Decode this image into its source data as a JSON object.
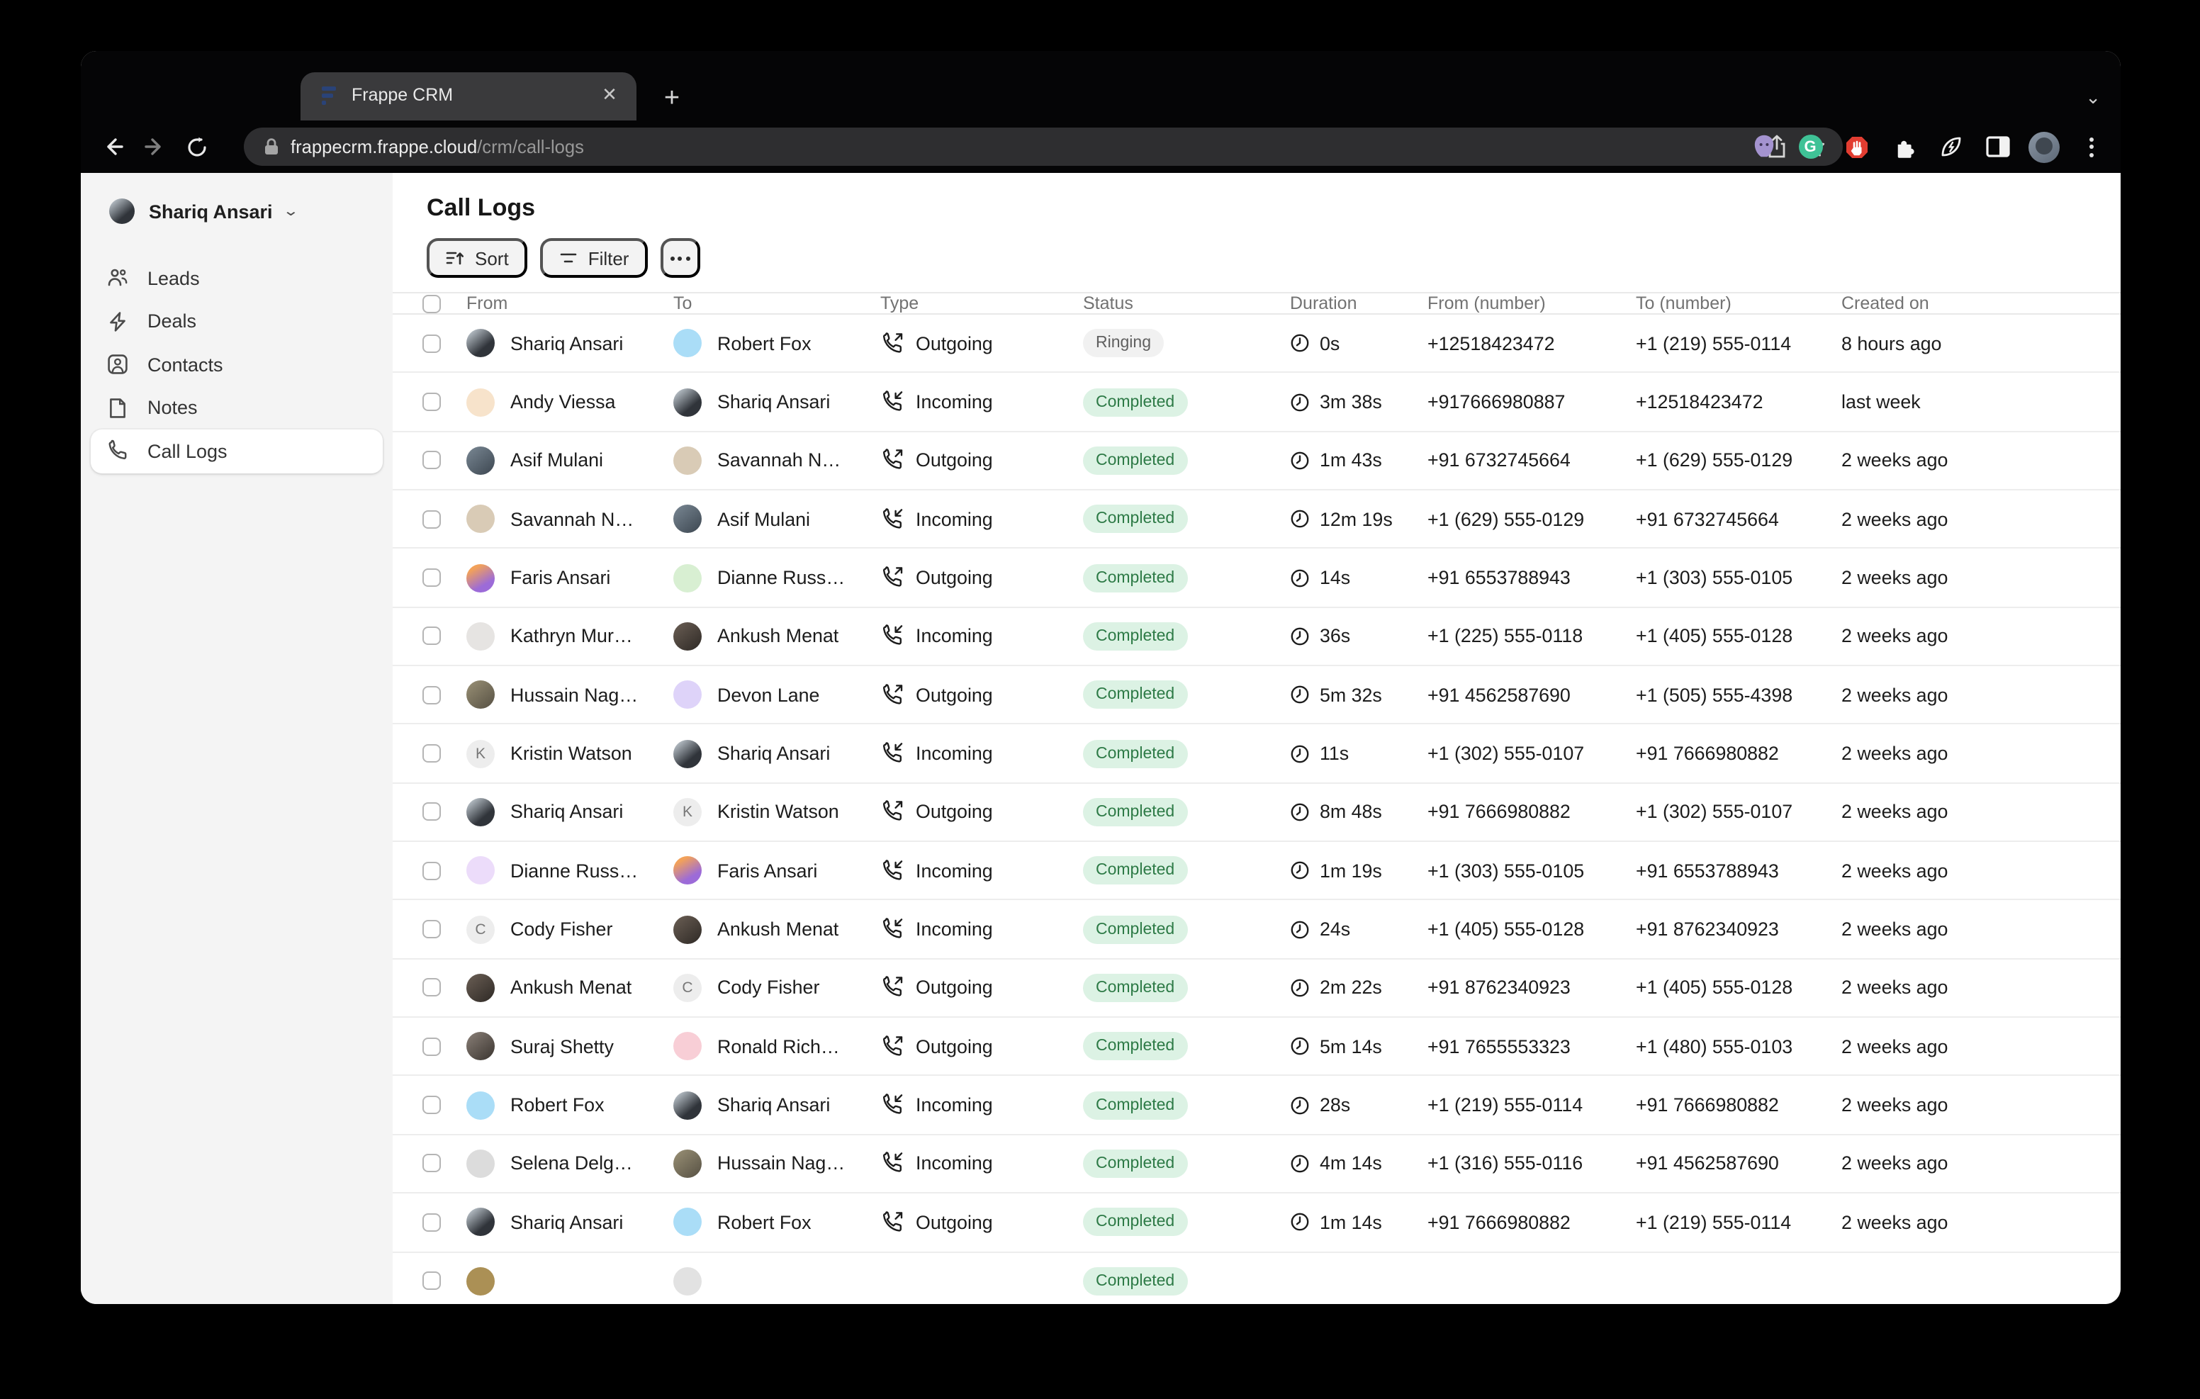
{
  "browser": {
    "tab": {
      "title": "Frappe CRM",
      "favicon": "frappe-logo"
    },
    "new_tab_label": "+",
    "url": {
      "domain": "frappecrm.frappe.cloud",
      "path": "/crm/call-logs"
    },
    "extensions": [
      "github",
      "grammarly",
      "adblock",
      "extensions-puzzle",
      "energy-saver",
      "side-panel"
    ],
    "grammarly_letter": "G"
  },
  "sidebar": {
    "user": {
      "name": "Shariq Ansari"
    },
    "items": [
      {
        "label": "Leads",
        "icon": "leads-icon",
        "active": false
      },
      {
        "label": "Deals",
        "icon": "deals-icon",
        "active": false
      },
      {
        "label": "Contacts",
        "icon": "contacts-icon",
        "active": false
      },
      {
        "label": "Notes",
        "icon": "notes-icon",
        "active": false
      },
      {
        "label": "Call Logs",
        "icon": "call-logs-icon",
        "active": true
      }
    ]
  },
  "main": {
    "title": "Call Logs",
    "toolbar": {
      "sort_label": "Sort",
      "filter_label": "Filter"
    },
    "table": {
      "columns": [
        "From",
        "To",
        "Type",
        "Status",
        "Duration",
        "From (number)",
        "To (number)",
        "Created on"
      ],
      "rows": [
        {
          "from": {
            "name": "Shariq Ansari",
            "avatar_color": "linear-gradient(140deg,#aeb6bd 15%,#30343a 65%)"
          },
          "to": {
            "name": "Robert Fox",
            "avatar_color": "#aaddf7"
          },
          "type": "Outgoing",
          "status": "Ringing",
          "duration": "0s",
          "from_number": "+12518423472",
          "to_number": "+1 (219) 555-0114",
          "created": "8 hours ago"
        },
        {
          "from": {
            "name": "Andy Viessa",
            "avatar_color": "#f7e3cb"
          },
          "to": {
            "name": "Shariq Ansari",
            "avatar_color": "linear-gradient(140deg,#aeb6bd 15%,#30343a 65%)"
          },
          "type": "Incoming",
          "status": "Completed",
          "duration": "3m 38s",
          "from_number": "+917666980887",
          "to_number": "+12518423472",
          "created": "last week"
        },
        {
          "from": {
            "name": "Asif Mulani",
            "avatar_color": "linear-gradient(140deg,#7a8894,#3c4650)"
          },
          "to": {
            "name": "Savannah N…",
            "avatar_color": "#d9cbb6"
          },
          "type": "Outgoing",
          "status": "Completed",
          "duration": "1m 43s",
          "from_number": "+91 6732745664",
          "to_number": "+1 (629) 555-0129",
          "created": "2 weeks ago"
        },
        {
          "from": {
            "name": "Savannah N…",
            "avatar_color": "#d9cbb6"
          },
          "to": {
            "name": "Asif Mulani",
            "avatar_color": "linear-gradient(140deg,#7a8894,#3c4650)"
          },
          "type": "Incoming",
          "status": "Completed",
          "duration": "12m 19s",
          "from_number": "+1 (629) 555-0129",
          "to_number": "+91 6732745664",
          "created": "2 weeks ago"
        },
        {
          "from": {
            "name": "Faris Ansari",
            "avatar_color": "linear-gradient(150deg,#f2a15a 20%,#9c6bd8 70%)"
          },
          "to": {
            "name": "Dianne Russ…",
            "avatar_color": "#d8efd2"
          },
          "type": "Outgoing",
          "status": "Completed",
          "duration": "14s",
          "from_number": "+91 6553788943",
          "to_number": "+1 (303) 555-0105",
          "created": "2 weeks ago"
        },
        {
          "from": {
            "name": "Kathryn Mur…",
            "avatar_color": "#e6e4e2"
          },
          "to": {
            "name": "Ankush Menat",
            "avatar_color": "linear-gradient(140deg,#6b5f55,#2e2925)"
          },
          "type": "Incoming",
          "status": "Completed",
          "duration": "36s",
          "from_number": "+1 (225) 555-0118",
          "to_number": "+1 (405) 555-0128",
          "created": "2 weeks ago"
        },
        {
          "from": {
            "name": "Hussain Nag…",
            "avatar_color": "linear-gradient(140deg,#9a9176,#565043)"
          },
          "to": {
            "name": "Devon Lane",
            "avatar_color": "#ded3f9"
          },
          "type": "Outgoing",
          "status": "Completed",
          "duration": "5m 32s",
          "from_number": "+91 4562587690",
          "to_number": "+1 (505) 555-4398",
          "created": "2 weeks ago"
        },
        {
          "from": {
            "name": "Kristin Watson",
            "avatar_color": "#ededed",
            "initial": "K"
          },
          "to": {
            "name": "Shariq Ansari",
            "avatar_color": "linear-gradient(140deg,#aeb6bd 15%,#30343a 65%)"
          },
          "type": "Incoming",
          "status": "Completed",
          "duration": "11s",
          "from_number": "+1 (302) 555-0107",
          "to_number": "+91 7666980882",
          "created": "2 weeks ago"
        },
        {
          "from": {
            "name": "Shariq Ansari",
            "avatar_color": "linear-gradient(140deg,#aeb6bd 15%,#30343a 65%)"
          },
          "to": {
            "name": "Kristin Watson",
            "avatar_color": "#ededed",
            "initial": "K"
          },
          "type": "Outgoing",
          "status": "Completed",
          "duration": "8m 48s",
          "from_number": "+91 7666980882",
          "to_number": "+1 (302) 555-0107",
          "created": "2 weeks ago"
        },
        {
          "from": {
            "name": "Dianne Russ…",
            "avatar_color": "#ecdcfa"
          },
          "to": {
            "name": "Faris Ansari",
            "avatar_color": "linear-gradient(150deg,#f2a15a 20%,#9c6bd8 70%)"
          },
          "type": "Incoming",
          "status": "Completed",
          "duration": "1m 19s",
          "from_number": "+1 (303) 555-0105",
          "to_number": "+91 6553788943",
          "created": "2 weeks ago"
        },
        {
          "from": {
            "name": "Cody Fisher",
            "avatar_color": "#ededed",
            "initial": "C"
          },
          "to": {
            "name": "Ankush Menat",
            "avatar_color": "linear-gradient(140deg,#6b5f55,#2e2925)"
          },
          "type": "Incoming",
          "status": "Completed",
          "duration": "24s",
          "from_number": "+1 (405) 555-0128",
          "to_number": "+91 8762340923",
          "created": "2 weeks ago"
        },
        {
          "from": {
            "name": "Ankush Menat",
            "avatar_color": "linear-gradient(140deg,#6b5f55,#2e2925)"
          },
          "to": {
            "name": "Cody Fisher",
            "avatar_color": "#ededed",
            "initial": "C"
          },
          "type": "Outgoing",
          "status": "Completed",
          "duration": "2m 22s",
          "from_number": "+91 8762340923",
          "to_number": "+1 (405) 555-0128",
          "created": "2 weeks ago"
        },
        {
          "from": {
            "name": "Suraj Shetty",
            "avatar_color": "linear-gradient(140deg,#8a8078,#3a342f)"
          },
          "to": {
            "name": "Ronald Rich…",
            "avatar_color": "#f8ced6"
          },
          "type": "Outgoing",
          "status": "Completed",
          "duration": "5m 14s",
          "from_number": "+91 7655553323",
          "to_number": "+1 (480) 555-0103",
          "created": "2 weeks ago"
        },
        {
          "from": {
            "name": "Robert Fox",
            "avatar_color": "#aaddf7"
          },
          "to": {
            "name": "Shariq Ansari",
            "avatar_color": "linear-gradient(140deg,#aeb6bd 15%,#30343a 65%)"
          },
          "type": "Incoming",
          "status": "Completed",
          "duration": "28s",
          "from_number": "+1 (219) 555-0114",
          "to_number": "+91 7666980882",
          "created": "2 weeks ago"
        },
        {
          "from": {
            "name": "Selena Delg…",
            "avatar_color": "#dcdcdc"
          },
          "to": {
            "name": "Hussain Nag…",
            "avatar_color": "linear-gradient(140deg,#9a9176,#565043)"
          },
          "type": "Incoming",
          "status": "Completed",
          "duration": "4m 14s",
          "from_number": "+1 (316) 555-0116",
          "to_number": "+91 4562587690",
          "created": "2 weeks ago"
        },
        {
          "from": {
            "name": "Shariq Ansari",
            "avatar_color": "linear-gradient(140deg,#aeb6bd 15%,#30343a 65%)"
          },
          "to": {
            "name": "Robert Fox",
            "avatar_color": "#aaddf7"
          },
          "type": "Outgoing",
          "status": "Completed",
          "duration": "1m 14s",
          "from_number": "+91 7666980882",
          "to_number": "+1 (219) 555-0114",
          "created": "2 weeks ago"
        },
        {
          "partial": true,
          "from": {
            "name": "",
            "avatar_color": "#ab9055"
          },
          "to": {
            "name": "",
            "avatar_color": "#e2e2e2"
          },
          "type": "",
          "status": "Completed",
          "duration": "",
          "from_number": "",
          "to_number": "",
          "created": ""
        }
      ]
    }
  },
  "colors": {
    "completed_badge_bg": "#dcf2e4",
    "completed_badge_text": "#2d7a46",
    "ringing_badge_bg": "#f1f1f1",
    "ringing_badge_text": "#5f5f5f",
    "sidebar_bg": "#f4f4f4",
    "chrome_bg": "#050506",
    "tab_bg": "#3a3a3c",
    "urlpill_bg": "#2e2e30",
    "frappe_navy": "#2a4378",
    "traffic_close": "#ff5f57",
    "traffic_min": "#febc2e",
    "traffic_zoom": "#28c840"
  }
}
